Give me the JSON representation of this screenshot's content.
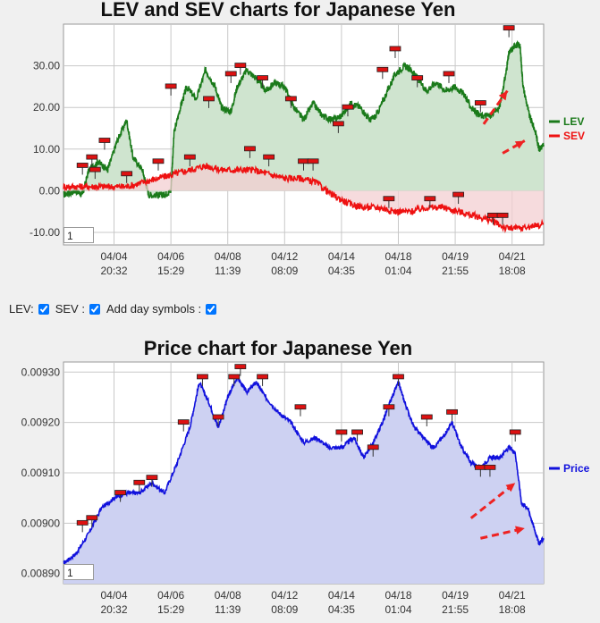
{
  "controls": {
    "lev_label": "LEV:",
    "sev_label": "SEV :",
    "day_symbols_label": "Add day symbols :",
    "lev_checked": true,
    "sev_checked": true,
    "day_symbols_checked": true
  },
  "colors": {
    "lev": "#1a7a1a",
    "lev_fill": "#cfe4cf",
    "sev": "#ee1111",
    "sev_fill": "#f3cfd1",
    "price": "#1111dd",
    "price_fill": "#cdd1f2",
    "marker": "#dd1111",
    "arrow": "#ee2222"
  },
  "chart_data": [
    {
      "type": "line",
      "title": "LEV and SEV charts for Japanese Yen",
      "ylim": [
        -13,
        40
      ],
      "y_ticks": [
        "30.00",
        "20.00",
        "10.00",
        "0.00",
        "-10.00"
      ],
      "y_tick_values": [
        30,
        20,
        10,
        0,
        -10
      ],
      "x_ticks": [
        {
          "date": "04/04",
          "time": "20:32"
        },
        {
          "date": "04/06",
          "time": "15:29"
        },
        {
          "date": "04/08",
          "time": "11:39"
        },
        {
          "date": "04/12",
          "time": "08:09"
        },
        {
          "date": "04/14",
          "time": "04:35"
        },
        {
          "date": "04/18",
          "time": "01:04"
        },
        {
          "date": "04/19",
          "time": "21:55"
        },
        {
          "date": "04/21",
          "time": "18:08"
        }
      ],
      "x_tick_positions": [
        1.6,
        3.4,
        5.2,
        7.0,
        8.8,
        10.6,
        12.4,
        14.2
      ],
      "xlim": [
        0,
        15.2
      ],
      "page_value": "1",
      "series": [
        {
          "name": "LEV",
          "points": [
            [
              0,
              -1
            ],
            [
              0.4,
              0
            ],
            [
              0.6,
              -1
            ],
            [
              0.8,
              5
            ],
            [
              1.1,
              7
            ],
            [
              1.4,
              5
            ],
            [
              1.7,
              12
            ],
            [
              2.0,
              17
            ],
            [
              2.2,
              8
            ],
            [
              2.5,
              5
            ],
            [
              2.7,
              -1
            ],
            [
              3.0,
              -1
            ],
            [
              3.2,
              -1
            ],
            [
              3.4,
              0
            ],
            [
              3.5,
              14
            ],
            [
              3.7,
              20
            ],
            [
              3.9,
              25
            ],
            [
              4.2,
              22
            ],
            [
              4.5,
              29
            ],
            [
              4.8,
              25
            ],
            [
              5.0,
              20
            ],
            [
              5.3,
              19
            ],
            [
              5.5,
              25
            ],
            [
              5.8,
              29
            ],
            [
              6.1,
              27
            ],
            [
              6.4,
              24
            ],
            [
              6.7,
              26
            ],
            [
              7.0,
              25
            ],
            [
              7.3,
              20
            ],
            [
              7.6,
              17
            ],
            [
              7.9,
              21
            ],
            [
              8.2,
              18
            ],
            [
              8.5,
              17
            ],
            [
              8.8,
              18
            ],
            [
              9.1,
              21
            ],
            [
              9.4,
              20
            ],
            [
              9.7,
              17
            ],
            [
              9.9,
              18
            ],
            [
              10.2,
              23
            ],
            [
              10.5,
              28
            ],
            [
              10.8,
              30
            ],
            [
              11.0,
              29
            ],
            [
              11.2,
              27
            ],
            [
              11.5,
              24
            ],
            [
              11.8,
              26
            ],
            [
              12.1,
              24
            ],
            [
              12.4,
              25
            ],
            [
              12.7,
              23
            ],
            [
              12.9,
              20
            ],
            [
              13.2,
              18
            ],
            [
              13.5,
              18
            ],
            [
              13.8,
              20
            ],
            [
              14.0,
              28
            ],
            [
              14.1,
              33
            ],
            [
              14.3,
              35
            ],
            [
              14.45,
              35
            ],
            [
              14.55,
              25
            ],
            [
              14.75,
              18
            ],
            [
              14.95,
              14
            ],
            [
              15.05,
              10
            ],
            [
              15.2,
              11
            ]
          ]
        },
        {
          "name": "SEV",
          "points": [
            [
              0,
              1
            ],
            [
              0.5,
              1
            ],
            [
              1.0,
              1
            ],
            [
              1.5,
              1
            ],
            [
              2.0,
              1
            ],
            [
              2.5,
              2
            ],
            [
              3.0,
              3
            ],
            [
              3.5,
              4
            ],
            [
              4.0,
              5
            ],
            [
              4.5,
              6
            ],
            [
              5.0,
              5
            ],
            [
              5.5,
              5
            ],
            [
              6.0,
              5
            ],
            [
              6.5,
              4
            ],
            [
              7.0,
              3
            ],
            [
              7.5,
              3
            ],
            [
              8.0,
              2
            ],
            [
              8.5,
              -1
            ],
            [
              9.0,
              -3
            ],
            [
              9.5,
              -4
            ],
            [
              10.0,
              -4
            ],
            [
              10.5,
              -5
            ],
            [
              11.0,
              -5
            ],
            [
              11.5,
              -4
            ],
            [
              12.0,
              -4
            ],
            [
              12.5,
              -5
            ],
            [
              13.0,
              -6
            ],
            [
              13.5,
              -7
            ],
            [
              14.0,
              -9
            ],
            [
              14.5,
              -9
            ],
            [
              15.2,
              -8
            ]
          ]
        }
      ],
      "markers": [
        [
          0.6,
          6
        ],
        [
          0.9,
          8
        ],
        [
          1.0,
          5
        ],
        [
          1.3,
          12
        ],
        [
          2.0,
          4
        ],
        [
          3.0,
          7
        ],
        [
          3.4,
          25
        ],
        [
          4.0,
          8
        ],
        [
          4.6,
          22
        ],
        [
          5.3,
          28
        ],
        [
          5.6,
          30
        ],
        [
          5.9,
          10
        ],
        [
          6.3,
          27
        ],
        [
          6.5,
          8
        ],
        [
          7.2,
          22
        ],
        [
          7.6,
          7
        ],
        [
          7.9,
          7
        ],
        [
          8.7,
          16
        ],
        [
          9.0,
          20
        ],
        [
          10.1,
          29
        ],
        [
          10.3,
          -2
        ],
        [
          10.5,
          34
        ],
        [
          11.2,
          27
        ],
        [
          11.6,
          -2
        ],
        [
          12.2,
          28
        ],
        [
          12.5,
          -1
        ],
        [
          13.2,
          21
        ],
        [
          13.6,
          -6
        ],
        [
          13.9,
          -6
        ],
        [
          14.1,
          39
        ]
      ],
      "arrows": [
        {
          "from": [
            13.3,
            16
          ],
          "to": [
            14.05,
            24
          ]
        },
        {
          "from": [
            13.9,
            9
          ],
          "to": [
            14.6,
            12
          ]
        }
      ]
    },
    {
      "type": "line",
      "title": "Price chart for Japanese Yen",
      "ylim": [
        0.00888,
        0.00932
      ],
      "y_ticks": [
        "0.00930",
        "0.00920",
        "0.00910",
        "0.00900",
        "0.00890"
      ],
      "y_tick_values": [
        0.0093,
        0.0092,
        0.0091,
        0.009,
        0.0089
      ],
      "x_ticks": [
        {
          "date": "04/04",
          "time": "20:32"
        },
        {
          "date": "04/06",
          "time": "15:29"
        },
        {
          "date": "04/08",
          "time": "11:39"
        },
        {
          "date": "04/12",
          "time": "08:09"
        },
        {
          "date": "04/14",
          "time": "04:35"
        },
        {
          "date": "04/18",
          "time": "01:04"
        },
        {
          "date": "04/19",
          "time": "21:55"
        },
        {
          "date": "04/21",
          "time": "18:08"
        }
      ],
      "x_tick_positions": [
        1.6,
        3.4,
        5.2,
        7.0,
        8.8,
        10.6,
        12.4,
        14.2
      ],
      "xlim": [
        0,
        15.2
      ],
      "page_value": "1",
      "series": [
        {
          "name": "Price",
          "points": [
            [
              0,
              0.00892
            ],
            [
              0.4,
              0.00894
            ],
            [
              0.8,
              0.00898
            ],
            [
              1.2,
              0.00903
            ],
            [
              1.6,
              0.00905
            ],
            [
              2.0,
              0.00906
            ],
            [
              2.4,
              0.00906
            ],
            [
              2.8,
              0.00908
            ],
            [
              3.2,
              0.00906
            ],
            [
              3.6,
              0.00912
            ],
            [
              4.0,
              0.00919
            ],
            [
              4.3,
              0.00928
            ],
            [
              4.6,
              0.00924
            ],
            [
              4.9,
              0.00919
            ],
            [
              5.2,
              0.00925
            ],
            [
              5.5,
              0.00929
            ],
            [
              5.8,
              0.00926
            ],
            [
              6.1,
              0.00928
            ],
            [
              6.4,
              0.00925
            ],
            [
              6.8,
              0.00922
            ],
            [
              7.2,
              0.0092
            ],
            [
              7.6,
              0.00916
            ],
            [
              8.0,
              0.00917
            ],
            [
              8.4,
              0.00915
            ],
            [
              8.8,
              0.00915
            ],
            [
              9.2,
              0.00917
            ],
            [
              9.5,
              0.00913
            ],
            [
              9.8,
              0.00916
            ],
            [
              10.1,
              0.0092
            ],
            [
              10.4,
              0.00925
            ],
            [
              10.6,
              0.00928
            ],
            [
              10.8,
              0.00924
            ],
            [
              11.1,
              0.00919
            ],
            [
              11.4,
              0.00917
            ],
            [
              11.7,
              0.00915
            ],
            [
              12.0,
              0.00917
            ],
            [
              12.3,
              0.0092
            ],
            [
              12.6,
              0.00915
            ],
            [
              12.9,
              0.00912
            ],
            [
              13.2,
              0.00911
            ],
            [
              13.5,
              0.00913
            ],
            [
              13.8,
              0.00913
            ],
            [
              14.1,
              0.00915
            ],
            [
              14.3,
              0.00914
            ],
            [
              14.5,
              0.00904
            ],
            [
              14.7,
              0.00903
            ],
            [
              14.9,
              0.00899
            ],
            [
              15.05,
              0.00896
            ],
            [
              15.2,
              0.00897
            ]
          ]
        }
      ],
      "markers": [
        [
          0.6,
          0.009
        ],
        [
          0.9,
          0.00901
        ],
        [
          1.8,
          0.00906
        ],
        [
          2.4,
          0.00908
        ],
        [
          2.8,
          0.00909
        ],
        [
          3.8,
          0.0092
        ],
        [
          4.4,
          0.00929
        ],
        [
          4.9,
          0.00921
        ],
        [
          5.4,
          0.00929
        ],
        [
          5.6,
          0.00931
        ],
        [
          6.3,
          0.00929
        ],
        [
          7.5,
          0.00923
        ],
        [
          8.8,
          0.00918
        ],
        [
          9.3,
          0.00918
        ],
        [
          9.8,
          0.00915
        ],
        [
          10.3,
          0.00923
        ],
        [
          10.6,
          0.00929
        ],
        [
          11.5,
          0.00921
        ],
        [
          12.3,
          0.00922
        ],
        [
          13.2,
          0.00911
        ],
        [
          13.5,
          0.00911
        ],
        [
          14.3,
          0.00918
        ]
      ],
      "arrows": [
        {
          "from": [
            12.9,
            0.00901
          ],
          "to": [
            14.3,
            0.00908
          ]
        },
        {
          "from": [
            13.2,
            0.00897
          ],
          "to": [
            14.6,
            0.00899
          ]
        }
      ]
    }
  ]
}
